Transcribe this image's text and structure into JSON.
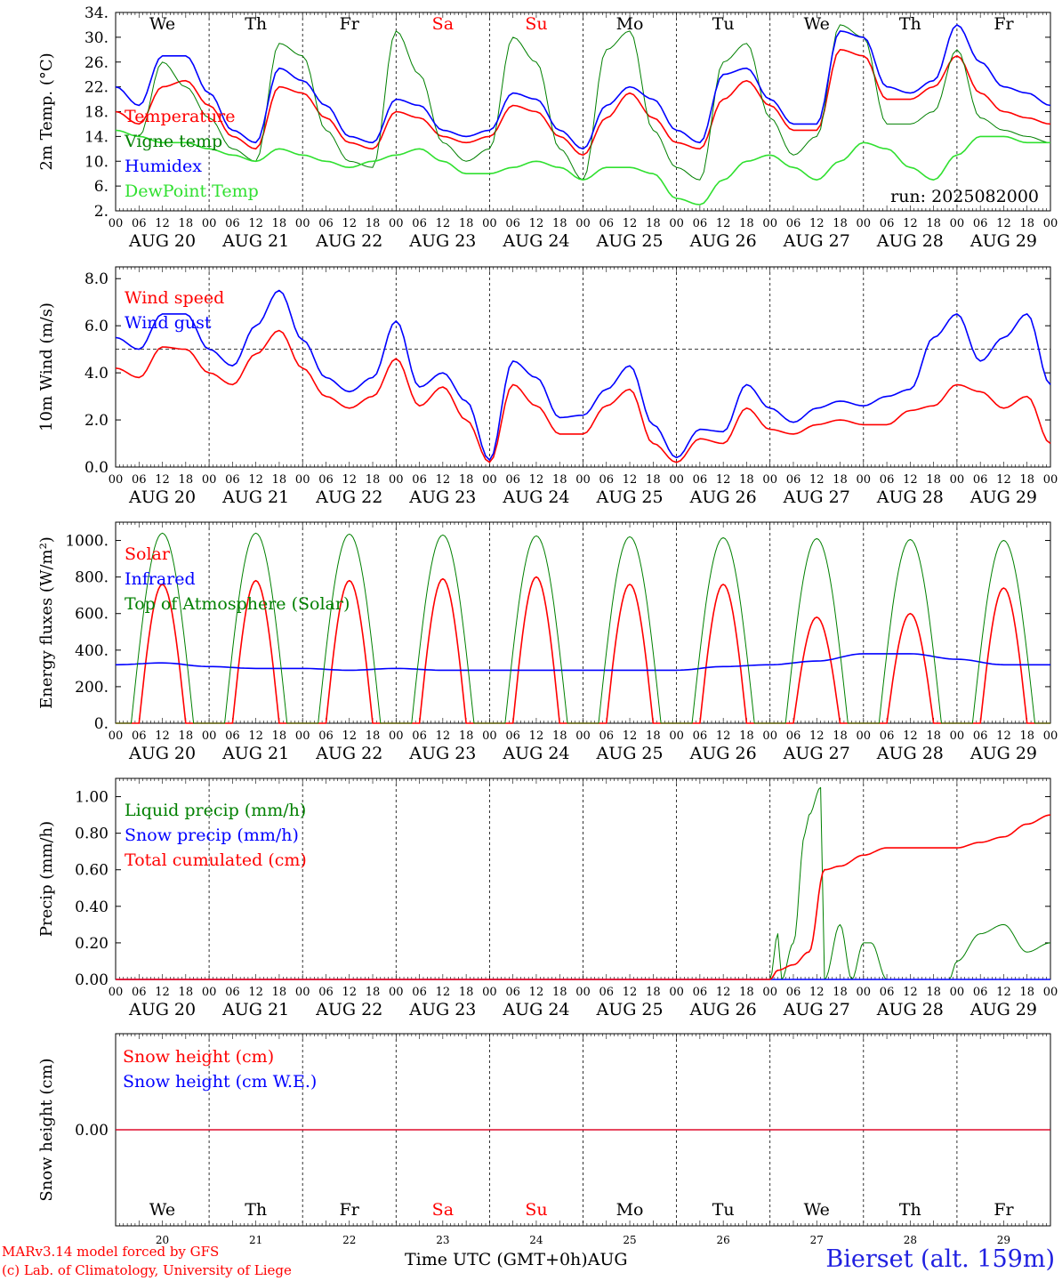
{
  "run_label": "run: 2025082000",
  "day_names": [
    "We",
    "Th",
    "Fr",
    "Sa",
    "Su",
    "Mo",
    "Tu",
    "We",
    "Th",
    "Fr"
  ],
  "weekend_indices": [
    3,
    4
  ],
  "date_labels": [
    "AUG 20",
    "AUG 21",
    "AUG 22",
    "AUG 23",
    "AUG 24",
    "AUG 25",
    "AUG 26",
    "AUG 27",
    "AUG 28",
    "AUG 29"
  ],
  "day_numbers": [
    "20",
    "21",
    "22",
    "23",
    "24",
    "25",
    "26",
    "27",
    "28",
    "29"
  ],
  "hour_ticks": [
    "00",
    "06",
    "12",
    "18"
  ],
  "hour_tick_end": "00",
  "footer": {
    "model": "MARv3.14 model forced by GFS",
    "copyright": "(c) Lab. of Climatology, University of Liege",
    "time_label": "Time UTC (GMT+0h)",
    "month": "AUG",
    "station": "Bierset (alt. 159m)"
  },
  "colors": {
    "red": "#ff0000",
    "green": "#008000",
    "blue": "#0000ff",
    "lightgreen": "#30e030",
    "ref": "#000000"
  },
  "chart_data": [
    {
      "type": "line",
      "ylabel": "2m Temp. (°C)",
      "ylim": [
        2,
        34
      ],
      "yticks": [
        "2.",
        "6.",
        "10.",
        "14.",
        "18.",
        "22.",
        "26.",
        "30.",
        "34."
      ],
      "x_unit": "hours since 2025-08-20 00 UTC",
      "series": [
        {
          "name": "Temperature",
          "color": "red",
          "x": [
            0,
            6,
            12,
            18,
            24,
            30,
            36,
            42,
            48,
            54,
            60,
            66,
            72,
            78,
            84,
            90,
            96,
            102,
            108,
            114,
            120,
            126,
            132,
            138,
            144,
            150,
            156,
            162,
            168,
            174,
            180,
            186,
            192,
            198,
            204,
            210,
            216,
            222,
            228,
            234,
            240
          ],
          "y": [
            18,
            16,
            22,
            23,
            19,
            14,
            12,
            22,
            21,
            17,
            13,
            12,
            18,
            17,
            14,
            13,
            14,
            19,
            18,
            14,
            11,
            17,
            21,
            17,
            13,
            12,
            20,
            23,
            19,
            15,
            15,
            28,
            27,
            20,
            20,
            22,
            27,
            21,
            18,
            17,
            16
          ]
        },
        {
          "name": "Vigne temp",
          "color": "green",
          "x": [
            0,
            6,
            12,
            18,
            24,
            30,
            36,
            42,
            48,
            54,
            60,
            66,
            72,
            78,
            84,
            90,
            96,
            102,
            108,
            114,
            120,
            126,
            132,
            138,
            144,
            150,
            156,
            162,
            168,
            174,
            180,
            186,
            192,
            198,
            204,
            210,
            216,
            222,
            228,
            234,
            240
          ],
          "y": [
            15,
            14,
            26,
            22,
            17,
            12,
            10,
            29,
            27,
            15,
            10,
            9,
            31,
            24,
            13,
            10,
            12,
            30,
            26,
            12,
            7,
            28,
            31,
            15,
            9,
            7,
            26,
            29,
            17,
            11,
            14,
            32,
            30,
            16,
            16,
            18,
            28,
            17,
            15,
            14,
            13
          ]
        },
        {
          "name": "Humidex",
          "color": "blue",
          "x": [
            0,
            6,
            12,
            18,
            24,
            30,
            36,
            42,
            48,
            54,
            60,
            66,
            72,
            78,
            84,
            90,
            96,
            102,
            108,
            114,
            120,
            126,
            132,
            138,
            144,
            150,
            156,
            162,
            168,
            174,
            180,
            186,
            192,
            198,
            204,
            210,
            216,
            222,
            228,
            234,
            240
          ],
          "y": [
            22,
            19,
            27,
            27,
            21,
            15,
            13,
            25,
            23,
            19,
            14,
            13,
            20,
            19,
            15,
            14,
            15,
            21,
            20,
            15,
            12,
            19,
            22,
            20,
            15,
            13,
            24,
            25,
            20,
            16,
            16,
            31,
            30,
            22,
            21,
            23,
            32,
            26,
            22,
            21,
            19
          ]
        },
        {
          "name": "DewPoint Temp",
          "color": "lightgreen",
          "x": [
            0,
            6,
            12,
            18,
            24,
            30,
            36,
            42,
            48,
            54,
            60,
            66,
            72,
            78,
            84,
            90,
            96,
            102,
            108,
            114,
            120,
            126,
            132,
            138,
            144,
            150,
            156,
            162,
            168,
            174,
            180,
            186,
            192,
            198,
            204,
            210,
            216,
            222,
            228,
            234,
            240
          ],
          "y": [
            15,
            14,
            13,
            13,
            12,
            11,
            10,
            12,
            11,
            10,
            9,
            10,
            11,
            12,
            10,
            8,
            8,
            9,
            10,
            9,
            7,
            9,
            9,
            8,
            4,
            3,
            7,
            10,
            11,
            9,
            7,
            10,
            13,
            12,
            9,
            7,
            11,
            14,
            14,
            13,
            13
          ]
        }
      ]
    },
    {
      "type": "line",
      "ylabel": "10m Wind (m/s)",
      "ylim": [
        0,
        8.5
      ],
      "yticks": [
        "0.0",
        "2.0",
        "4.0",
        "6.0",
        "8.0"
      ],
      "reference_line": 5.0,
      "series": [
        {
          "name": "Wind speed",
          "color": "red",
          "x": [
            0,
            6,
            12,
            18,
            24,
            30,
            36,
            42,
            48,
            54,
            60,
            66,
            72,
            78,
            84,
            90,
            96,
            102,
            108,
            114,
            120,
            126,
            132,
            138,
            144,
            150,
            156,
            162,
            168,
            174,
            180,
            186,
            192,
            198,
            204,
            210,
            216,
            222,
            228,
            234,
            240
          ],
          "y": [
            4.2,
            3.8,
            5.1,
            5.0,
            4.0,
            3.5,
            4.8,
            5.8,
            4.2,
            3.0,
            2.5,
            3.0,
            4.6,
            2.6,
            3.4,
            2.0,
            0.2,
            3.5,
            2.6,
            1.4,
            1.4,
            2.6,
            3.3,
            1.0,
            0.2,
            1.2,
            1.0,
            2.5,
            1.6,
            1.4,
            1.8,
            2.0,
            1.8,
            1.8,
            2.4,
            2.6,
            3.5,
            3.2,
            2.5,
            3.0,
            1.0
          ]
        },
        {
          "name": "Wind gust",
          "color": "blue",
          "x": [
            0,
            6,
            12,
            18,
            24,
            30,
            36,
            42,
            48,
            54,
            60,
            66,
            72,
            78,
            84,
            90,
            96,
            102,
            108,
            114,
            120,
            126,
            132,
            138,
            144,
            150,
            156,
            162,
            168,
            174,
            180,
            186,
            192,
            198,
            204,
            210,
            216,
            222,
            228,
            234,
            240
          ],
          "y": [
            5.5,
            5.0,
            6.5,
            6.5,
            5.0,
            4.3,
            6.0,
            7.5,
            5.4,
            3.8,
            3.2,
            3.8,
            6.2,
            3.4,
            4.0,
            2.8,
            0.3,
            4.5,
            3.8,
            2.1,
            2.2,
            3.3,
            4.3,
            1.8,
            0.4,
            1.6,
            1.5,
            3.5,
            2.5,
            1.9,
            2.5,
            2.8,
            2.6,
            3.0,
            3.3,
            5.5,
            6.5,
            4.5,
            5.5,
            6.5,
            3.5
          ]
        }
      ]
    },
    {
      "type": "line",
      "ylabel": "Energy fluxes (W/m²)",
      "ylim": [
        0,
        1100
      ],
      "yticks": [
        "0.",
        "200.",
        "400.",
        "600.",
        "800.",
        "1000."
      ],
      "series": [
        {
          "name": "Solar",
          "color": "red",
          "daily_peak": [
            760,
            780,
            780,
            790,
            800,
            760,
            760,
            580,
            600,
            740
          ]
        },
        {
          "name": "Infrared",
          "color": "blue",
          "x": [
            0,
            12,
            24,
            36,
            48,
            60,
            72,
            84,
            96,
            108,
            120,
            132,
            144,
            156,
            168,
            180,
            192,
            204,
            216,
            228,
            240
          ],
          "y": [
            320,
            330,
            310,
            300,
            300,
            290,
            300,
            290,
            290,
            290,
            290,
            290,
            290,
            310,
            320,
            340,
            380,
            380,
            350,
            320,
            320
          ]
        },
        {
          "name": "Top of Atmosphere (Solar)",
          "color": "green",
          "daily_peak": [
            1040,
            1040,
            1035,
            1030,
            1025,
            1020,
            1015,
            1010,
            1005,
            1000
          ]
        }
      ]
    },
    {
      "type": "line",
      "ylabel": "Precip (mm/h)",
      "ylim": [
        0,
        1.1
      ],
      "yticks": [
        "0.00",
        "0.20",
        "0.40",
        "0.60",
        "0.80",
        "1.00"
      ],
      "series": [
        {
          "name": "Liquid precip (mm/h)",
          "color": "green",
          "x": [
            0,
            168,
            170,
            171,
            174,
            177,
            178,
            181,
            182,
            186,
            189,
            192,
            194,
            198,
            204,
            210,
            214,
            216,
            222,
            228,
            234,
            240
          ],
          "y": [
            0,
            0,
            0.25,
            0,
            0.2,
            0.8,
            0.9,
            1.05,
            0,
            0.3,
            0,
            0.2,
            0.2,
            0,
            0,
            0,
            0,
            0.1,
            0.25,
            0.3,
            0.15,
            0.2
          ]
        },
        {
          "name": "Snow precip (mm/h)",
          "color": "blue",
          "x": [
            0,
            240
          ],
          "y": [
            0,
            0
          ]
        },
        {
          "name": "Total cumulated (cm)",
          "color": "red",
          "x": [
            0,
            168,
            170,
            174,
            178,
            182,
            186,
            192,
            198,
            204,
            210,
            216,
            222,
            228,
            234,
            240
          ],
          "y": [
            0,
            0,
            0.05,
            0.08,
            0.15,
            0.6,
            0.62,
            0.68,
            0.72,
            0.72,
            0.72,
            0.72,
            0.75,
            0.78,
            0.85,
            0.9
          ]
        }
      ]
    },
    {
      "type": "line",
      "ylabel": "Snow height (cm)",
      "yticks": [
        "0.00"
      ],
      "series": [
        {
          "name": "Snow height (cm)",
          "color": "red",
          "x": [
            0,
            240
          ],
          "y": [
            0,
            0
          ]
        },
        {
          "name": "Snow height (cm W.E.)",
          "color": "blue",
          "x": [
            0,
            240
          ],
          "y": [
            0,
            0
          ]
        }
      ]
    }
  ]
}
